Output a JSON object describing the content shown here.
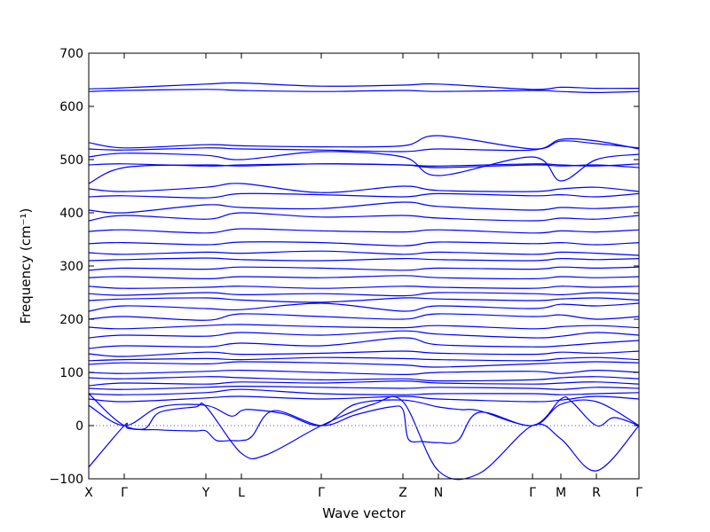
{
  "chart_data": {
    "type": "line",
    "title": "",
    "xlabel": "Wave vector",
    "ylabel": "Frequency (cm⁻¹)",
    "ylim": [
      -100,
      700
    ],
    "yticks": [
      -100,
      0,
      100,
      200,
      300,
      400,
      500,
      600,
      700
    ],
    "xlim": [
      0,
      15.5
    ],
    "xticks": [
      {
        "label": "X",
        "x": 0
      },
      {
        "label": "Γ",
        "x": 1.0
      },
      {
        "label": "Y",
        "x": 3.3
      },
      {
        "label": "L",
        "x": 4.3
      },
      {
        "label": "Γ",
        "x": 6.55
      },
      {
        "label": "Z",
        "x": 8.85
      },
      {
        "label": "N",
        "x": 9.85
      },
      {
        "label": "Γ",
        "x": 12.5
      },
      {
        "label": "M",
        "x": 13.3
      },
      {
        "label": "R",
        "x": 14.3
      },
      {
        "label": "Γ",
        "x": 15.5
      }
    ],
    "zero_line": {
      "y": 0,
      "style": "dotted",
      "color": "#4a4aff"
    },
    "line_color": "#0000ff",
    "grid": false,
    "series": [
      {
        "x": [
          0,
          1,
          1.1,
          1.6,
          2,
          3,
          3.3,
          4.3,
          5,
          6.55,
          8,
          8.85,
          9.85,
          11,
          12.5,
          13.3,
          14.3,
          15.5
        ],
        "y": [
          -78,
          0,
          -5,
          -5,
          25,
          35,
          36,
          -52,
          -55,
          0,
          40,
          45,
          -85,
          -90,
          0,
          -25,
          -85,
          0
        ]
      },
      {
        "x": [
          0,
          1,
          2,
          3,
          3.3,
          3.6,
          4,
          4.3,
          4.6,
          5.2,
          6.55,
          7.5,
          8.5,
          8.85,
          9.0,
          9.4,
          9.85,
          10.4,
          11,
          12.5,
          13.3,
          13.6,
          14.3,
          14.8,
          15.5
        ],
        "y": [
          60,
          0,
          -8,
          -10,
          -10,
          -28,
          -28,
          -28,
          -20,
          28,
          0,
          20,
          35,
          30,
          -25,
          -30,
          -32,
          -28,
          25,
          0,
          50,
          45,
          0,
          15,
          0
        ]
      },
      {
        "x": [
          0,
          1,
          2,
          3.3,
          4,
          4.3,
          4.6,
          5.5,
          6.55,
          7.5,
          8.85,
          9.85,
          10.5,
          11,
          12.5,
          13.3,
          14.3,
          15.5
        ],
        "y": [
          38,
          0,
          35,
          38,
          18,
          28,
          30,
          22,
          0,
          40,
          48,
          35,
          30,
          28,
          0,
          40,
          45,
          0
        ]
      },
      {
        "x": [
          0,
          1,
          3.3,
          4.3,
          6.55,
          8.85,
          9.85,
          12.5,
          13.3,
          14.3,
          15.5
        ],
        "y": [
          50,
          45,
          52,
          55,
          50,
          55,
          50,
          45,
          48,
          55,
          50
        ]
      },
      {
        "x": [
          0,
          1,
          3.3,
          4.3,
          6.55,
          8.85,
          9.85,
          12.5,
          13.3,
          14.3,
          15.5
        ],
        "y": [
          60,
          58,
          62,
          68,
          60,
          58,
          60,
          60,
          58,
          60,
          62
        ]
      },
      {
        "x": [
          0,
          1,
          3.3,
          4.3,
          6.55,
          8.85,
          9.85,
          12.5,
          13.3,
          14.3,
          15.5
        ],
        "y": [
          70,
          68,
          72,
          74,
          72,
          70,
          72,
          70,
          68,
          72,
          70
        ]
      },
      {
        "x": [
          0,
          1,
          3.3,
          4.3,
          6.55,
          8.85,
          9.85,
          12.5,
          13.3,
          14.3,
          15.5
        ],
        "y": [
          75,
          80,
          78,
          82,
          80,
          84,
          80,
          78,
          80,
          82,
          78
        ]
      },
      {
        "x": [
          0,
          1,
          3.3,
          4.3,
          6.55,
          8.85,
          9.85,
          12.5,
          13.3,
          14.3,
          15.5
        ],
        "y": [
          90,
          88,
          92,
          90,
          86,
          88,
          84,
          86,
          90,
          92,
          88
        ]
      },
      {
        "x": [
          0,
          1,
          3.3,
          4.3,
          6.55,
          8.85,
          9.85,
          12.5,
          13.3,
          14.3,
          15.5
        ],
        "y": [
          100,
          98,
          102,
          104,
          100,
          96,
          100,
          102,
          98,
          104,
          100
        ]
      },
      {
        "x": [
          0,
          1,
          3.3,
          4.3,
          6.55,
          8.85,
          9.85,
          12.5,
          13.3,
          14.3,
          15.5
        ],
        "y": [
          115,
          118,
          116,
          120,
          118,
          114,
          110,
          116,
          118,
          120,
          118
        ]
      },
      {
        "x": [
          0,
          1,
          3.3,
          4.3,
          6.55,
          8.85,
          9.85,
          12.5,
          13.3,
          14.3,
          15.5
        ],
        "y": [
          122,
          124,
          126,
          124,
          128,
          126,
          124,
          122,
          126,
          128,
          124
        ]
      },
      {
        "x": [
          0,
          1,
          3.3,
          4.3,
          6.55,
          8.85,
          9.85,
          12.5,
          13.3,
          14.3,
          15.5
        ],
        "y": [
          135,
          130,
          138,
          134,
          136,
          140,
          136,
          134,
          138,
          136,
          140
        ]
      },
      {
        "x": [
          0,
          1,
          3.3,
          4.3,
          6.55,
          8.85,
          9.85,
          12.5,
          13.3,
          14.3,
          15.5
        ],
        "y": [
          145,
          150,
          148,
          155,
          150,
          165,
          152,
          148,
          150,
          155,
          160
        ]
      },
      {
        "x": [
          0,
          1,
          3.3,
          4.3,
          6.55,
          8.85,
          9.85,
          12.5,
          13.3,
          14.3,
          15.5
        ],
        "y": [
          165,
          170,
          168,
          175,
          170,
          178,
          172,
          165,
          168,
          175,
          170
        ]
      },
      {
        "x": [
          0,
          1,
          3.3,
          4.3,
          6.55,
          8.85,
          9.85,
          12.5,
          13.3,
          14.3,
          15.5
        ],
        "y": [
          185,
          182,
          188,
          190,
          186,
          184,
          188,
          182,
          186,
          188,
          184
        ]
      },
      {
        "x": [
          0,
          1,
          3.3,
          4.3,
          6.55,
          8.85,
          9.85,
          12.5,
          13.3,
          14.3,
          15.5
        ],
        "y": [
          200,
          205,
          198,
          210,
          205,
          200,
          210,
          205,
          208,
          200,
          205
        ]
      },
      {
        "x": [
          0,
          1,
          3.3,
          4.3,
          6.55,
          8.85,
          9.85,
          12.5,
          13.3,
          14.3,
          15.5
        ],
        "y": [
          215,
          225,
          220,
          218,
          230,
          215,
          225,
          220,
          228,
          225,
          230
        ]
      },
      {
        "x": [
          0,
          1,
          3.3,
          4.3,
          6.55,
          8.85,
          9.85,
          12.5,
          13.3,
          14.3,
          15.5
        ],
        "y": [
          235,
          238,
          240,
          236,
          232,
          240,
          238,
          235,
          238,
          240,
          236
        ]
      },
      {
        "x": [
          0,
          1,
          3.3,
          4.3,
          6.55,
          8.85,
          9.85,
          12.5,
          13.3,
          14.3,
          15.5
        ],
        "y": [
          248,
          245,
          250,
          246,
          248,
          244,
          250,
          248,
          246,
          250,
          248
        ]
      },
      {
        "x": [
          0,
          1,
          3.3,
          4.3,
          6.55,
          8.85,
          9.85,
          12.5,
          13.3,
          14.3,
          15.5
        ],
        "y": [
          262,
          258,
          260,
          262,
          258,
          262,
          260,
          258,
          262,
          260,
          262
        ]
      },
      {
        "x": [
          0,
          1,
          3.3,
          4.3,
          6.55,
          8.85,
          9.85,
          12.5,
          13.3,
          14.3,
          15.5
        ],
        "y": [
          278,
          280,
          276,
          280,
          278,
          282,
          278,
          276,
          280,
          278,
          280
        ]
      },
      {
        "x": [
          0,
          1,
          3.3,
          4.3,
          6.55,
          8.85,
          9.85,
          12.5,
          13.3,
          14.3,
          15.5
        ],
        "y": [
          292,
          296,
          294,
          298,
          296,
          292,
          296,
          294,
          298,
          296,
          298
        ]
      },
      {
        "x": [
          0,
          1,
          3.3,
          4.3,
          6.55,
          8.85,
          9.85,
          12.5,
          13.3,
          14.3,
          15.5
        ],
        "y": [
          310,
          312,
          315,
          312,
          310,
          314,
          312,
          310,
          314,
          312,
          314
        ]
      },
      {
        "x": [
          0,
          1,
          3.3,
          4.3,
          6.55,
          8.85,
          9.85,
          12.5,
          13.3,
          14.3,
          15.5
        ],
        "y": [
          325,
          322,
          326,
          324,
          328,
          322,
          326,
          322,
          326,
          324,
          320
        ]
      },
      {
        "x": [
          0,
          1,
          3.3,
          4.3,
          6.55,
          8.85,
          9.85,
          12.5,
          13.3,
          14.3,
          15.5
        ],
        "y": [
          342,
          344,
          340,
          345,
          344,
          338,
          345,
          342,
          344,
          340,
          344
        ]
      },
      {
        "x": [
          0,
          1,
          3.3,
          4.3,
          6.55,
          8.85,
          9.85,
          12.5,
          13.3,
          14.3,
          15.5
        ],
        "y": [
          365,
          368,
          362,
          370,
          366,
          364,
          368,
          362,
          366,
          364,
          368
        ]
      },
      {
        "x": [
          0,
          1,
          3.3,
          4.3,
          6.55,
          8.85,
          9.85,
          12.5,
          13.3,
          14.3,
          15.5
        ],
        "y": [
          385,
          395,
          388,
          400,
          392,
          395,
          390,
          385,
          390,
          388,
          395
        ]
      },
      {
        "x": [
          0,
          1,
          3.3,
          4.3,
          6.55,
          8.85,
          9.85,
          12.5,
          13.3,
          14.3,
          15.5
        ],
        "y": [
          405,
          400,
          415,
          410,
          408,
          420,
          412,
          405,
          410,
          408,
          412
        ]
      },
      {
        "x": [
          0,
          1,
          3.3,
          4.3,
          6.55,
          8.85,
          9.85,
          12.5,
          13.3,
          14.3,
          15.5
        ],
        "y": [
          430,
          432,
          428,
          436,
          434,
          430,
          436,
          432,
          434,
          430,
          436
        ]
      },
      {
        "x": [
          0,
          1,
          3.3,
          4.3,
          6.55,
          8.85,
          9.85,
          12.5,
          13.3,
          14.3,
          15.5
        ],
        "y": [
          445,
          440,
          448,
          455,
          438,
          450,
          442,
          440,
          445,
          448,
          440
        ]
      },
      {
        "x": [
          0,
          1,
          3.3,
          4.3,
          6.55,
          8.85,
          9.85,
          12.5,
          13.3,
          14.3,
          15.5
        ],
        "y": [
          455,
          485,
          490,
          488,
          492,
          490,
          485,
          490,
          488,
          490,
          485
        ]
      },
      {
        "x": [
          0,
          1,
          3.3,
          4.3,
          6.55,
          8.85,
          9.85,
          12.5,
          13.3,
          14.3,
          15.5
        ],
        "y": [
          490,
          492,
          488,
          490,
          492,
          490,
          488,
          492,
          490,
          488,
          492
        ]
      },
      {
        "x": [
          0,
          1,
          3.3,
          4.3,
          6.55,
          8.85,
          9.85,
          12.5,
          13.3,
          14.3,
          15.5
        ],
        "y": [
          505,
          512,
          508,
          500,
          515,
          505,
          470,
          505,
          460,
          500,
          510
        ]
      },
      {
        "x": [
          0,
          1,
          3.3,
          4.3,
          6.55,
          8.85,
          9.85,
          12.5,
          13.3,
          14.3,
          15.5
        ],
        "y": [
          520,
          518,
          522,
          520,
          518,
          515,
          520,
          518,
          538,
          535,
          520
        ]
      },
      {
        "x": [
          0,
          1,
          3.3,
          4.3,
          6.55,
          8.85,
          9.85,
          12.5,
          13.3,
          14.3,
          15.5
        ],
        "y": [
          532,
          522,
          528,
          526,
          524,
          526,
          545,
          520,
          535,
          530,
          522
        ]
      },
      {
        "x": [
          0,
          1,
          3.3,
          4.3,
          6.55,
          8.85,
          9.85,
          12.5,
          13.3,
          14.3,
          15.5
        ],
        "y": [
          628,
          630,
          632,
          630,
          628,
          630,
          628,
          630,
          628,
          626,
          628
        ]
      },
      {
        "x": [
          0,
          1,
          3.3,
          4.3,
          6.55,
          8.85,
          9.85,
          12.5,
          13.3,
          14.3,
          15.5
        ],
        "y": [
          633,
          635,
          642,
          644,
          638,
          640,
          642,
          632,
          636,
          634,
          634
        ]
      }
    ]
  }
}
